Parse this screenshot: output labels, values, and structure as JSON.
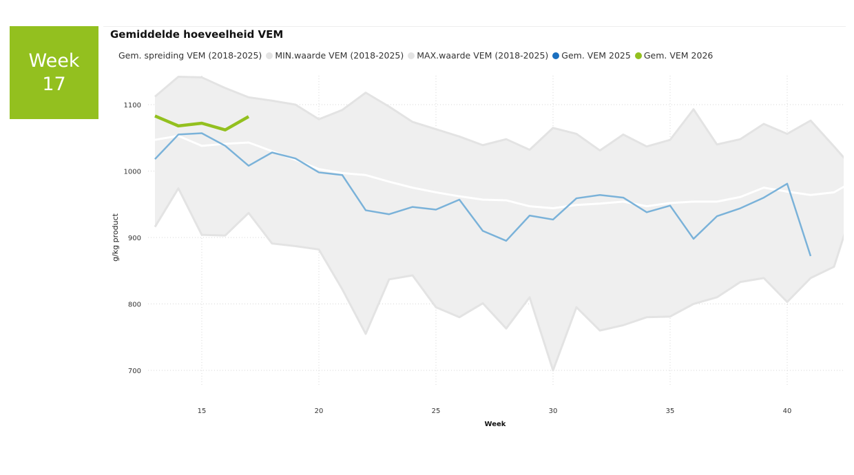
{
  "badge": {
    "line1": "Week",
    "line2": "17"
  },
  "chart_data": {
    "type": "line",
    "title": "Gemiddelde hoeveelheid VEM",
    "xlabel": "Week",
    "ylabel": "g/kg product",
    "xlim": [
      12.8,
      42.4
    ],
    "ylim": [
      680,
      1150
    ],
    "xticks": [
      15,
      20,
      25,
      30,
      35,
      40
    ],
    "yticks": [
      700,
      800,
      900,
      1000,
      1100
    ],
    "grid": true,
    "legend_position": "top-left",
    "colors": {
      "band": "#efefef",
      "band_edge": "#e3e3e3",
      "avg": "#ffffff",
      "y2025": "#7ab2d9",
      "y2026": "#93c01f",
      "legend_2025": "#1a6fbf",
      "legend_2026": "#93c01f",
      "legend_grey": "#e0e0e0"
    },
    "x": [
      13,
      14,
      15,
      16,
      17,
      18,
      19,
      20,
      21,
      22,
      23,
      24,
      25,
      26,
      27,
      28,
      29,
      30,
      31,
      32,
      33,
      34,
      35,
      36,
      37,
      38,
      39,
      40,
      41,
      42,
      43
    ],
    "series": [
      {
        "name": "Gem. spreiding VEM (2018-2025)",
        "values": [
          1047,
          1053,
          1038,
          1041,
          1043,
          1030,
          1017,
          1003,
          997,
          994,
          984,
          975,
          968,
          962,
          957,
          956,
          947,
          944,
          949,
          951,
          954,
          947,
          952,
          954,
          954,
          961,
          975,
          969,
          964,
          968,
          988
        ]
      },
      {
        "name": "MIN.waarde VEM (2018-2025)",
        "values": [
          916,
          974,
          904,
          903,
          937,
          891,
          887,
          882,
          822,
          755,
          837,
          843,
          795,
          780,
          801,
          763,
          810,
          700,
          795,
          760,
          768,
          780,
          781,
          800,
          810,
          833,
          839,
          803,
          839,
          856,
          966
        ]
      },
      {
        "name": "MAX.waarde VEM (2018-2025)",
        "values": [
          1112,
          1142,
          1141,
          1125,
          1111,
          1106,
          1100,
          1078,
          1092,
          1118,
          1097,
          1074,
          1063,
          1052,
          1039,
          1048,
          1032,
          1065,
          1056,
          1031,
          1055,
          1037,
          1047,
          1093,
          1040,
          1048,
          1071,
          1056,
          1076,
          1037,
          997
        ]
      },
      {
        "name": "Gem. VEM 2025",
        "values": [
          1018,
          1055,
          1057,
          1038,
          1008,
          1028,
          1019,
          998,
          994,
          941,
          935,
          946,
          942,
          957,
          910,
          895,
          933,
          927,
          959,
          964,
          960,
          938,
          948,
          898,
          932,
          944,
          960,
          981,
          872,
          null,
          null
        ]
      },
      {
        "name": "Gem. VEM 2026",
        "values": [
          1083,
          1068,
          1072,
          1062,
          1082,
          null,
          null,
          null,
          null,
          null,
          null,
          null,
          null,
          null,
          null,
          null,
          null,
          null,
          null,
          null,
          null,
          null,
          null,
          null,
          null,
          null,
          null,
          null,
          null,
          null,
          null
        ]
      }
    ]
  }
}
